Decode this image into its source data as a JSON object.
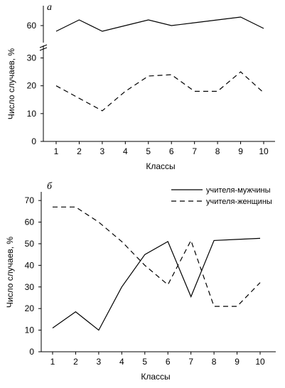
{
  "chart_data": [
    {
      "type": "line",
      "panel_label": "а",
      "xlabel": "Классы",
      "ylabel": "Число случаев, %",
      "x": [
        1,
        2,
        3,
        4,
        5,
        6,
        7,
        8,
        9,
        10
      ],
      "xticks": [
        "1",
        "2",
        "3",
        "4",
        "5",
        "6",
        "7",
        "8",
        "9",
        "10"
      ],
      "yticks_lower": [
        "0",
        "10",
        "20",
        "30"
      ],
      "yticks_upper": [
        "60"
      ],
      "axis_break": true,
      "ylim_lower": [
        0,
        35
      ],
      "ylim_upper": [
        55,
        67
      ],
      "grid": false,
      "series": [
        {
          "style": "solid",
          "values": [
            58,
            62,
            58,
            60,
            62,
            60,
            61,
            62,
            63,
            59
          ]
        },
        {
          "style": "dashed",
          "values": [
            20,
            15.5,
            11,
            18,
            23.5,
            24,
            18,
            18,
            25,
            17.5
          ]
        }
      ]
    },
    {
      "type": "line",
      "panel_label": "б",
      "xlabel": "Классы",
      "ylabel": "Число случаев, %",
      "x": [
        1,
        2,
        3,
        4,
        5,
        6,
        7,
        8,
        9,
        10
      ],
      "xticks": [
        "1",
        "2",
        "3",
        "4",
        "5",
        "6",
        "7",
        "8",
        "9",
        "10"
      ],
      "yticks": [
        "0",
        "10",
        "20",
        "30",
        "40",
        "50",
        "60",
        "70"
      ],
      "ylim": [
        0,
        74
      ],
      "grid": false,
      "legend_position": "top-right",
      "series": [
        {
          "name": "учителя-мужчины",
          "style": "solid",
          "values": [
            11,
            18.5,
            10,
            30,
            45,
            51,
            25.5,
            51.5,
            52,
            52.5
          ]
        },
        {
          "name": "учителя-женщины",
          "style": "dashed",
          "values": [
            67,
            67,
            60,
            51,
            40,
            31,
            51.5,
            21,
            21,
            32
          ]
        }
      ]
    }
  ]
}
